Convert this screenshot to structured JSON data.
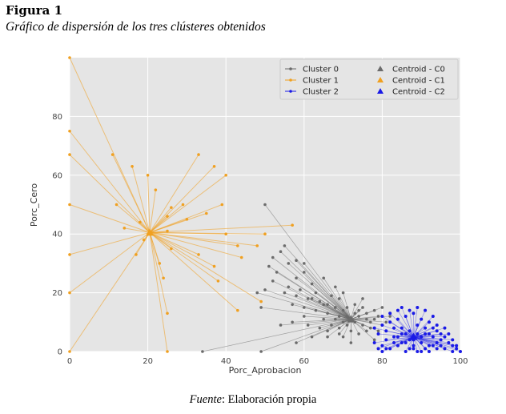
{
  "figure": {
    "label": "Figura 1",
    "title": "Gráfico de dispersión de los tres clústeres obtenidos"
  },
  "source": {
    "lead": "Fuente",
    "rest": ": Elaboración propia"
  },
  "chart_data": {
    "type": "scatter",
    "title": "",
    "xlabel": "Porc_Aprobacion",
    "ylabel": "Porc_Cero",
    "xlim": [
      0,
      100
    ],
    "ylim": [
      0,
      100
    ],
    "xticks": [
      0,
      20,
      40,
      60,
      80,
      100
    ],
    "yticks": [
      0,
      20,
      40,
      60,
      80
    ],
    "grid": true,
    "legend_position": "top-right",
    "legend": [
      {
        "label": "Cluster 0",
        "kind": "point",
        "color": "#6b6b6b"
      },
      {
        "label": "Cluster 1",
        "kind": "point",
        "color": "#f0a020"
      },
      {
        "label": "Cluster 2",
        "kind": "point",
        "color": "#1a1ae6"
      },
      {
        "label": "Centroid - C0",
        "kind": "triangle",
        "color": "#6b6b6b"
      },
      {
        "label": "Centroid - C1",
        "kind": "triangle",
        "color": "#f0a020"
      },
      {
        "label": "Centroid - C2",
        "kind": "triangle",
        "color": "#1a1ae6"
      }
    ],
    "colors": {
      "c0": "#6b6b6b",
      "c1": "#f0a020",
      "c2": "#1a1ae6",
      "panel": "#e5e5e5",
      "grid": "#ffffff"
    },
    "series": [
      {
        "name": "Cluster 0",
        "centroid": [
          72,
          11
        ],
        "points": [
          [
            50,
            50
          ],
          [
            49,
            0
          ],
          [
            34,
            0
          ],
          [
            55,
            36
          ],
          [
            54,
            34
          ],
          [
            52,
            32
          ],
          [
            56,
            30
          ],
          [
            60,
            27
          ],
          [
            58,
            25
          ],
          [
            62,
            23
          ],
          [
            52,
            24
          ],
          [
            50,
            21
          ],
          [
            48,
            20
          ],
          [
            55,
            20
          ],
          [
            58,
            19
          ],
          [
            61,
            18
          ],
          [
            64,
            17
          ],
          [
            66,
            16
          ],
          [
            68,
            15
          ],
          [
            70,
            14
          ],
          [
            63,
            14
          ],
          [
            66,
            13
          ],
          [
            69,
            12
          ],
          [
            71,
            12
          ],
          [
            74,
            12
          ],
          [
            76,
            11
          ],
          [
            73,
            10
          ],
          [
            70,
            10
          ],
          [
            67,
            9
          ],
          [
            64,
            8
          ],
          [
            75,
            9
          ],
          [
            77,
            8
          ],
          [
            79,
            7
          ],
          [
            72,
            7
          ],
          [
            69,
            6
          ],
          [
            66,
            5
          ],
          [
            76,
            13
          ],
          [
            78,
            14
          ],
          [
            80,
            15
          ],
          [
            82,
            12
          ],
          [
            60,
            12
          ],
          [
            57,
            10
          ],
          [
            54,
            9
          ],
          [
            62,
            5
          ],
          [
            58,
            3
          ],
          [
            72,
            3
          ],
          [
            78,
            4
          ],
          [
            80,
            9
          ],
          [
            70,
            20
          ],
          [
            65,
            25
          ],
          [
            75,
            18
          ],
          [
            60,
            30
          ],
          [
            58,
            31
          ],
          [
            68,
            22
          ],
          [
            73,
            16
          ],
          [
            74,
            14
          ],
          [
            71,
            15
          ],
          [
            69,
            18
          ],
          [
            67,
            19
          ],
          [
            56,
            22
          ],
          [
            53,
            27
          ],
          [
            51,
            29
          ],
          [
            49,
            15
          ],
          [
            60,
            15
          ],
          [
            65,
            11
          ],
          [
            69,
            8
          ],
          [
            74,
            6
          ],
          [
            77,
            10
          ],
          [
            79,
            12
          ],
          [
            81,
            10
          ],
          [
            63,
            20
          ],
          [
            59,
            21
          ],
          [
            57,
            16
          ],
          [
            61,
            9
          ],
          [
            66,
            7
          ],
          [
            70,
            5
          ],
          [
            73,
            13
          ],
          [
            75,
            15
          ],
          [
            68,
            11
          ],
          [
            71,
            9
          ],
          [
            65,
            16
          ],
          [
            62,
            18
          ],
          [
            76,
            7
          ],
          [
            78,
            11
          ]
        ]
      },
      {
        "name": "Cluster 1",
        "centroid": [
          20.5,
          40.5
        ],
        "points": [
          [
            0,
            100
          ],
          [
            0,
            75
          ],
          [
            0,
            67
          ],
          [
            0,
            50
          ],
          [
            0,
            33
          ],
          [
            0,
            20
          ],
          [
            0,
            0
          ],
          [
            11,
            67
          ],
          [
            12,
            50
          ],
          [
            16,
            63
          ],
          [
            20,
            60
          ],
          [
            22,
            55
          ],
          [
            25,
            46
          ],
          [
            25,
            41
          ],
          [
            26,
            35
          ],
          [
            23,
            30
          ],
          [
            24,
            25
          ],
          [
            25,
            13
          ],
          [
            25,
            0
          ],
          [
            33,
            67
          ],
          [
            37,
            63
          ],
          [
            40,
            60
          ],
          [
            40,
            40
          ],
          [
            39,
            50
          ],
          [
            33,
            33
          ],
          [
            43,
            36
          ],
          [
            44,
            32
          ],
          [
            48,
            36
          ],
          [
            43,
            14
          ],
          [
            37,
            29
          ],
          [
            38,
            24
          ],
          [
            29,
            50
          ],
          [
            30,
            45
          ],
          [
            35,
            47
          ],
          [
            17,
            33
          ],
          [
            18,
            44
          ],
          [
            19,
            38
          ],
          [
            14,
            42
          ],
          [
            50,
            40
          ],
          [
            57,
            43
          ],
          [
            49,
            17
          ],
          [
            26,
            49
          ]
        ]
      },
      {
        "name": "Cluster 2",
        "centroid": [
          88,
          5
        ],
        "points": [
          [
            80,
            0
          ],
          [
            82,
            1
          ],
          [
            84,
            2
          ],
          [
            86,
            3
          ],
          [
            88,
            4
          ],
          [
            90,
            5
          ],
          [
            92,
            6
          ],
          [
            94,
            7
          ],
          [
            96,
            8
          ],
          [
            98,
            2
          ],
          [
            100,
            0
          ],
          [
            99,
            1
          ],
          [
            97,
            3
          ],
          [
            95,
            4
          ],
          [
            93,
            2
          ],
          [
            91,
            1
          ],
          [
            89,
            0
          ],
          [
            87,
            1
          ],
          [
            85,
            3
          ],
          [
            83,
            5
          ],
          [
            81,
            7
          ],
          [
            80,
            9
          ],
          [
            82,
            10
          ],
          [
            84,
            11
          ],
          [
            86,
            12
          ],
          [
            88,
            13
          ],
          [
            90,
            11
          ],
          [
            92,
            10
          ],
          [
            94,
            9
          ],
          [
            96,
            5
          ],
          [
            98,
            4
          ],
          [
            85,
            8
          ],
          [
            87,
            7
          ],
          [
            89,
            9
          ],
          [
            91,
            8
          ],
          [
            93,
            5
          ],
          [
            95,
            2
          ],
          [
            83,
            8
          ],
          [
            81,
            4
          ],
          [
            79,
            6
          ],
          [
            78,
            3
          ],
          [
            80,
            2
          ],
          [
            84,
            5
          ],
          [
            86,
            6
          ],
          [
            88,
            2
          ],
          [
            90,
            3
          ],
          [
            92,
            2
          ],
          [
            94,
            1
          ],
          [
            96,
            1
          ],
          [
            98,
            0
          ],
          [
            89,
            15
          ],
          [
            87,
            14
          ],
          [
            91,
            14
          ],
          [
            85,
            15
          ],
          [
            93,
            12
          ],
          [
            86,
            0
          ],
          [
            88,
            1
          ],
          [
            90,
            0
          ],
          [
            92,
            0
          ],
          [
            94,
            3
          ],
          [
            82,
            13
          ],
          [
            80,
            12
          ],
          [
            84,
            14
          ],
          [
            97,
            6
          ],
          [
            99,
            2
          ],
          [
            95,
            6
          ],
          [
            93,
            8
          ],
          [
            91,
            6
          ],
          [
            89,
            6
          ],
          [
            87,
            4
          ],
          [
            85,
            6
          ],
          [
            83,
            3
          ],
          [
            81,
            1
          ],
          [
            79,
            1
          ],
          [
            78,
            8
          ]
        ]
      }
    ]
  }
}
